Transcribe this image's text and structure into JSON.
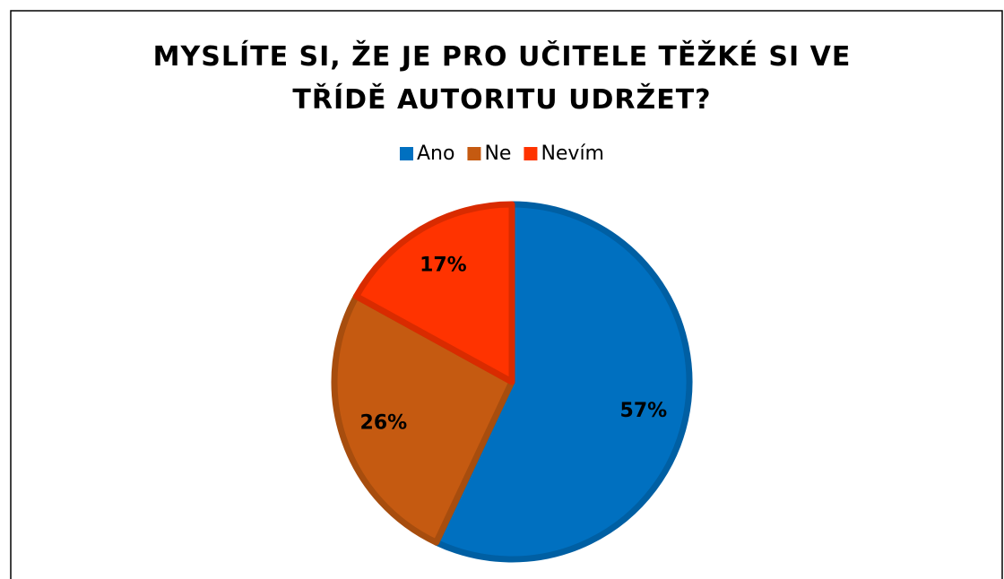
{
  "chart_data": {
    "type": "pie",
    "title": "MYSLÍTE SI, ŽE JE PRO UČITELE TĚŽKÉ SI VE TŘÍDĚ AUTORITU UDRŽET?",
    "categories": [
      "Ano",
      "Ne",
      "Nevím"
    ],
    "values": [
      57,
      26,
      17
    ],
    "value_labels": [
      "57%",
      "26%",
      "17%"
    ],
    "colors": [
      "#0070c0",
      "#c55a11",
      "#ff3300"
    ],
    "legend": "top"
  }
}
